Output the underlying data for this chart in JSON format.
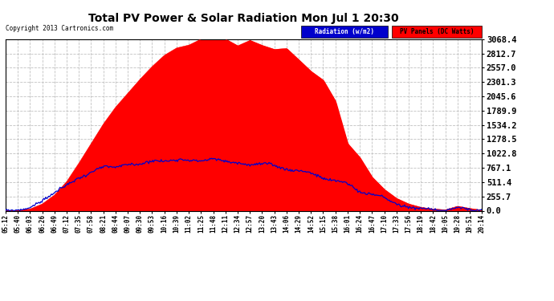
{
  "title": "Total PV Power & Solar Radiation Mon Jul 1 20:30",
  "copyright": "Copyright 2013 Cartronics.com",
  "legend_radiation": "Radiation (w/m2)",
  "legend_pv": "PV Panels (DC Watts)",
  "y_max": 3068.4,
  "y_min": 0.0,
  "y_ticks": [
    0.0,
    255.7,
    511.4,
    767.1,
    1022.8,
    1278.5,
    1534.2,
    1789.9,
    2045.6,
    2301.3,
    2557.0,
    2812.7,
    3068.4
  ],
  "x_labels": [
    "05:12",
    "05:40",
    "06:03",
    "06:26",
    "06:49",
    "07:12",
    "07:35",
    "07:58",
    "08:21",
    "08:44",
    "09:07",
    "09:30",
    "09:53",
    "10:16",
    "10:39",
    "11:02",
    "11:25",
    "11:48",
    "12:11",
    "12:34",
    "12:57",
    "13:20",
    "13:43",
    "14:06",
    "14:29",
    "14:52",
    "15:15",
    "15:38",
    "16:01",
    "16:24",
    "16:47",
    "17:10",
    "17:33",
    "17:56",
    "18:19",
    "18:42",
    "19:05",
    "19:28",
    "19:51",
    "20:14"
  ],
  "background_color": "#ffffff",
  "plot_bg_color": "#ffffff",
  "grid_color": "#bbbbbb",
  "pv_fill_color": "#ff0000",
  "radiation_line_color": "#0000cc",
  "title_color": "#000000",
  "copyright_color": "#000000",
  "y_label_color": "#000000",
  "pv_values": [
    0,
    5,
    30,
    120,
    280,
    520,
    850,
    1200,
    1550,
    1850,
    2100,
    2350,
    2580,
    2780,
    2920,
    3020,
    3060,
    3068,
    3068,
    3010,
    2980,
    2950,
    2900,
    2820,
    2700,
    2550,
    2350,
    2050,
    1200,
    950,
    600,
    380,
    220,
    120,
    60,
    30,
    15,
    80,
    40,
    10
  ],
  "pv_noise_seed": 7,
  "pv_noise_scale": 40,
  "rad_values": [
    0,
    10,
    60,
    180,
    320,
    460,
    580,
    680,
    750,
    800,
    840,
    860,
    880,
    890,
    895,
    900,
    890,
    880,
    870,
    855,
    840,
    815,
    790,
    760,
    720,
    670,
    610,
    540,
    460,
    370,
    280,
    200,
    130,
    75,
    35,
    15,
    8,
    50,
    20,
    5
  ],
  "rad_noise_seed": 13,
  "rad_noise_scale": 20
}
